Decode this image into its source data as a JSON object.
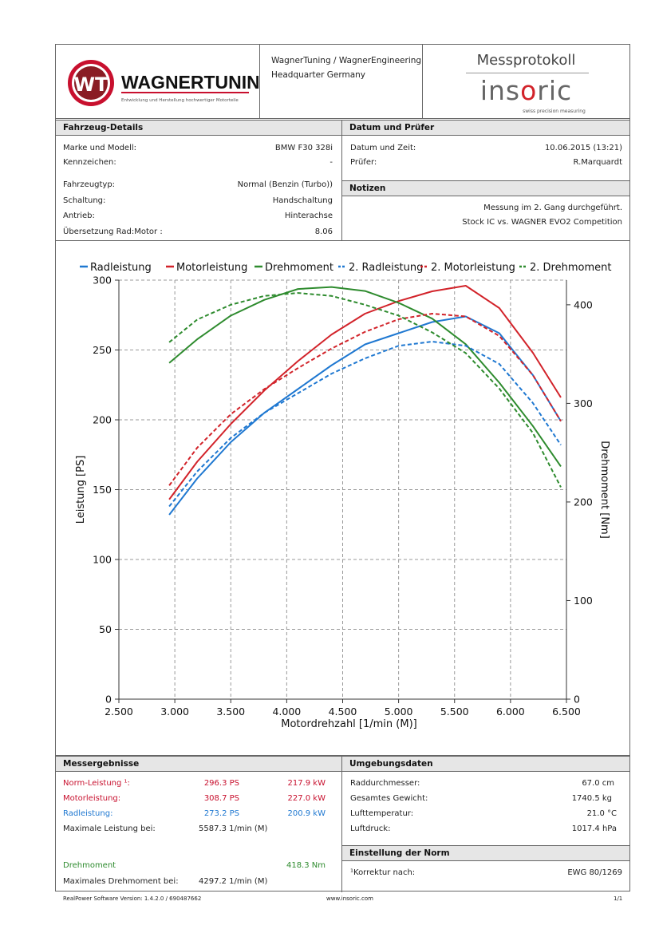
{
  "header": {
    "company_line1": "WagnerTuning / WagnerEngineering",
    "company_line2": "Headquarter Germany",
    "logo_text": "WAGNERTUNING",
    "logo_tagline": "Entwicklung und Herstellung hochwertiger Motorteile",
    "protocol_title": "Messprotokoll",
    "brand": "insoric",
    "brand_tagline": "swiss precision measuring"
  },
  "vehicle": {
    "title": "Fahrzeug-Details",
    "rows": [
      {
        "label": "Marke und Modell:",
        "value": "BMW F30 328i"
      },
      {
        "label": "Kennzeichen:",
        "value": "-"
      },
      {
        "label": "Fahrzeugtyp:",
        "value": "Normal (Benzin (Turbo))"
      },
      {
        "label": "Schaltung:",
        "value": "Handschaltung"
      },
      {
        "label": "Antrieb:",
        "value": "Hinterachse"
      },
      {
        "label": "Übersetzung Rad:Motor :",
        "value": "8.06"
      }
    ]
  },
  "date_tester": {
    "title": "Datum und Prüfer",
    "rows": [
      {
        "label": "Datum und Zeit:",
        "value": "10.06.2015 (13:21)"
      },
      {
        "label": "Prüfer:",
        "value": "R.Marquardt"
      }
    ]
  },
  "notes": {
    "title": "Notizen",
    "line1": "Messung im 2. Gang durchgeführt.",
    "line2": "Stock IC vs. WAGNER EVO2 Competition"
  },
  "chart_data": {
    "type": "line",
    "xlabel": "Motordrehzahl [1/min (M)]",
    "ylabel": "Leistung [PS]",
    "y2label": "Drehmoment [Nm]",
    "xlim": [
      2500,
      6500
    ],
    "ylim": [
      0,
      300
    ],
    "y2lim": [
      0,
      425
    ],
    "x_ticks": [
      "2.500",
      "3.000",
      "3.500",
      "4.000",
      "4.500",
      "5.000",
      "5.500",
      "6.000",
      "6.500"
    ],
    "y_ticks": [
      "0",
      "50",
      "100",
      "150",
      "200",
      "250",
      "300"
    ],
    "y2_ticks": [
      "0",
      "100",
      "200",
      "300",
      "400"
    ],
    "grid": true,
    "legend_position": "top",
    "colors": {
      "blue": "#1f78d1",
      "red": "#d2232a",
      "green": "#2e8b2e"
    },
    "x": [
      2950,
      3200,
      3500,
      3800,
      4100,
      4400,
      4700,
      5000,
      5300,
      5600,
      5900,
      6200,
      6450
    ],
    "series": [
      {
        "name": "Radleistung",
        "axis": "left",
        "color": "#1f78d1",
        "dash": false,
        "values": [
          132,
          158,
          184,
          205,
          222,
          239,
          254,
          262,
          270,
          274,
          262,
          232,
          199
        ]
      },
      {
        "name": "Motorleistung",
        "axis": "left",
        "color": "#d2232a",
        "dash": false,
        "values": [
          143,
          170,
          197,
          221,
          242,
          261,
          276,
          285,
          292,
          296,
          280,
          248,
          216
        ]
      },
      {
        "name": "Drehmoment",
        "axis": "right",
        "color": "#2e8b2e",
        "dash": false,
        "values": [
          341,
          365,
          389,
          405,
          416,
          418,
          414,
          402,
          386,
          360,
          321,
          277,
          236
        ]
      },
      {
        "name": "2. Radleistung",
        "axis": "left",
        "color": "#1f78d1",
        "dash": true,
        "values": [
          138,
          163,
          187,
          205,
          219,
          233,
          244,
          253,
          256,
          253,
          240,
          212,
          182
        ]
      },
      {
        "name": "2. Motorleistung",
        "axis": "left",
        "color": "#d2232a",
        "dash": true,
        "values": [
          153,
          180,
          204,
          222,
          237,
          251,
          263,
          272,
          276,
          274,
          260,
          232,
          199
        ]
      },
      {
        "name": "2. Drehmoment",
        "axis": "right",
        "color": "#2e8b2e",
        "dash": true,
        "values": [
          362,
          385,
          400,
          409,
          412,
          409,
          400,
          389,
          372,
          351,
          315,
          270,
          215
        ]
      }
    ]
  },
  "results": {
    "title": "Messergebnisse",
    "norm": {
      "label": "Norm-Leistung ¹:",
      "ps": "296.3 PS",
      "kw": "217.9 kW"
    },
    "motor": {
      "label": "Motorleistung:",
      "ps": "308.7 PS",
      "kw": "227.0 kW"
    },
    "rad": {
      "label": "Radleistung:",
      "ps": "273.2 PS",
      "kw": "200.9 kW"
    },
    "max_power": {
      "label": "Maximale Leistung bei:",
      "value": "5587.3 1/min (M)"
    },
    "torque": {
      "label": "Drehmoment",
      "value": "418.3 Nm"
    },
    "max_torque": {
      "label": "Maximales Drehmoment bei:",
      "value": "4297.2 1/min (M)"
    }
  },
  "environment": {
    "title": "Umgebungsdaten",
    "rows": [
      {
        "label": "Raddurchmesser:",
        "value": "67.0 cm"
      },
      {
        "label": "Gesamtes Gewicht:",
        "value": "1740.5 kg"
      },
      {
        "label": "Lufttemperatur:",
        "value": "21.0 °C"
      },
      {
        "label": "Luftdruck:",
        "value": "1017.4 hPa"
      }
    ]
  },
  "norm_setting": {
    "title": "Einstellung der Norm",
    "label": "¹Korrektur nach:",
    "value": "EWG 80/1269"
  },
  "footer": {
    "software": "RealPower Software Version: 1.4.2.0 / 690487662",
    "url": "www.insoric.com",
    "page": "1/1"
  }
}
